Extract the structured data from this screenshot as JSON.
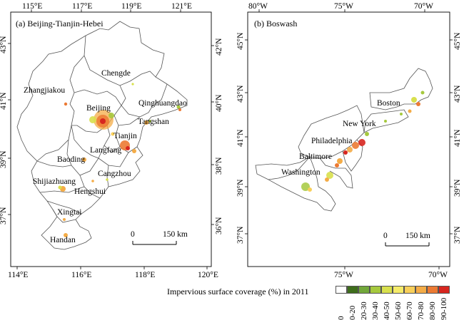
{
  "panel_a": {
    "title": "(a) Beijing-Tianjin-Hebei",
    "top_lon": [
      "115°E",
      "117°E",
      "119°E",
      "121°E"
    ],
    "bottom_lon": [
      "114°E",
      "116°E",
      "118°E",
      "120°E"
    ],
    "left_lat": [
      "43°N",
      "41°N",
      "39°N",
      "37°N"
    ],
    "right_lat": [
      "42°N",
      "40°N",
      "38°N",
      "36°N"
    ],
    "cities": [
      "Chengde",
      "Zhangjiakou",
      "Qinghuangdao",
      "Beijing",
      "Tangshan",
      "Tianjin",
      "Langfang",
      "Baoding",
      "Cangzhou",
      "Shijiazhuang",
      "Hengshui",
      "Xingtai",
      "Handan"
    ],
    "scale": {
      "zero": "0",
      "label": "150 km"
    }
  },
  "panel_b": {
    "title": "(b) Boswash",
    "top_lon": [
      "80°W",
      "75°W",
      "70°W"
    ],
    "bottom_lon": [
      "75°W",
      "70°W"
    ],
    "left_lat": [
      "45°N",
      "43°N",
      "41°N",
      "39°N",
      "37°N"
    ],
    "right_lat": [
      "45°N",
      "43°N",
      "41°N",
      "39°N",
      "37°N"
    ],
    "cities": [
      "Boston",
      "New York",
      "Philadelphia",
      "Baltimore",
      "Washington"
    ],
    "scale": {
      "zero": "0",
      "label": "150 km"
    }
  },
  "legend": {
    "title": "Impervious surface coverage (%) in 2011",
    "classes": [
      {
        "label": "0",
        "color": "#ffffff"
      },
      {
        "label": "0-20",
        "color": "#3e6e1c"
      },
      {
        "label": "20-30",
        "color": "#72a83a"
      },
      {
        "label": "30-40",
        "color": "#a6c93e"
      },
      {
        "label": "40-50",
        "color": "#d8e04d"
      },
      {
        "label": "50-60",
        "color": "#f5eb6a"
      },
      {
        "label": "60-70",
        "color": "#f8cf5a"
      },
      {
        "label": "70-80",
        "color": "#f4ac47"
      },
      {
        "label": "80-90",
        "color": "#ec7a33"
      },
      {
        "label": "90-100",
        "color": "#d7261f"
      }
    ]
  }
}
